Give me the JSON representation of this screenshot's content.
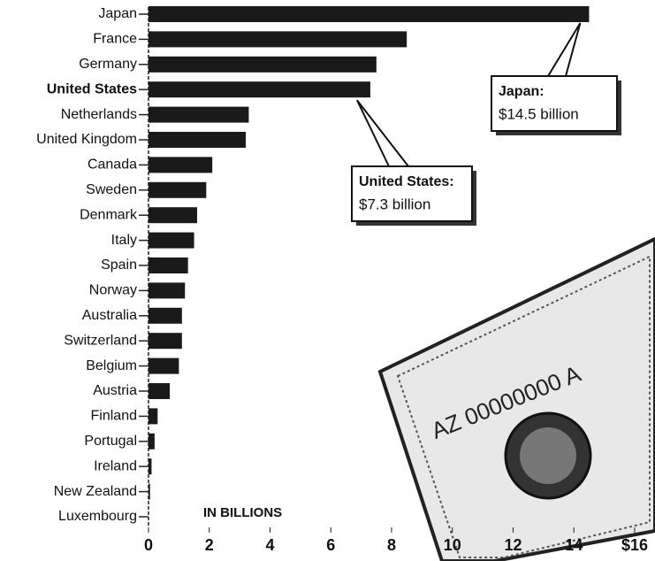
{
  "chart_data": {
    "type": "bar",
    "orientation": "horizontal",
    "categories": [
      "Japan",
      "France",
      "Germany",
      "United States",
      "Netherlands",
      "United Kingdom",
      "Canada",
      "Sweden",
      "Denmark",
      "Italy",
      "Spain",
      "Norway",
      "Australia",
      "Switzerland",
      "Belgium",
      "Austria",
      "Finland",
      "Portugal",
      "Ireland",
      "New Zealand",
      "Luxembourg"
    ],
    "values": [
      14.5,
      8.5,
      7.5,
      7.3,
      3.3,
      3.2,
      2.1,
      1.9,
      1.6,
      1.5,
      1.3,
      1.2,
      1.1,
      1.1,
      1.0,
      0.7,
      0.3,
      0.2,
      0.1,
      0.05,
      0
    ],
    "color": "#1a1a1a",
    "xlim": [
      0,
      16
    ],
    "xticks": [
      0,
      2,
      4,
      6,
      8,
      10,
      12,
      14,
      {
        "value": 16,
        "label": "$16"
      }
    ],
    "axis_note": "IN BILLIONS",
    "annotations": [
      {
        "title": "Japan:",
        "text": "$14.5 billion"
      },
      {
        "title": "United States:",
        "text": "$7.3 billion"
      }
    ]
  }
}
